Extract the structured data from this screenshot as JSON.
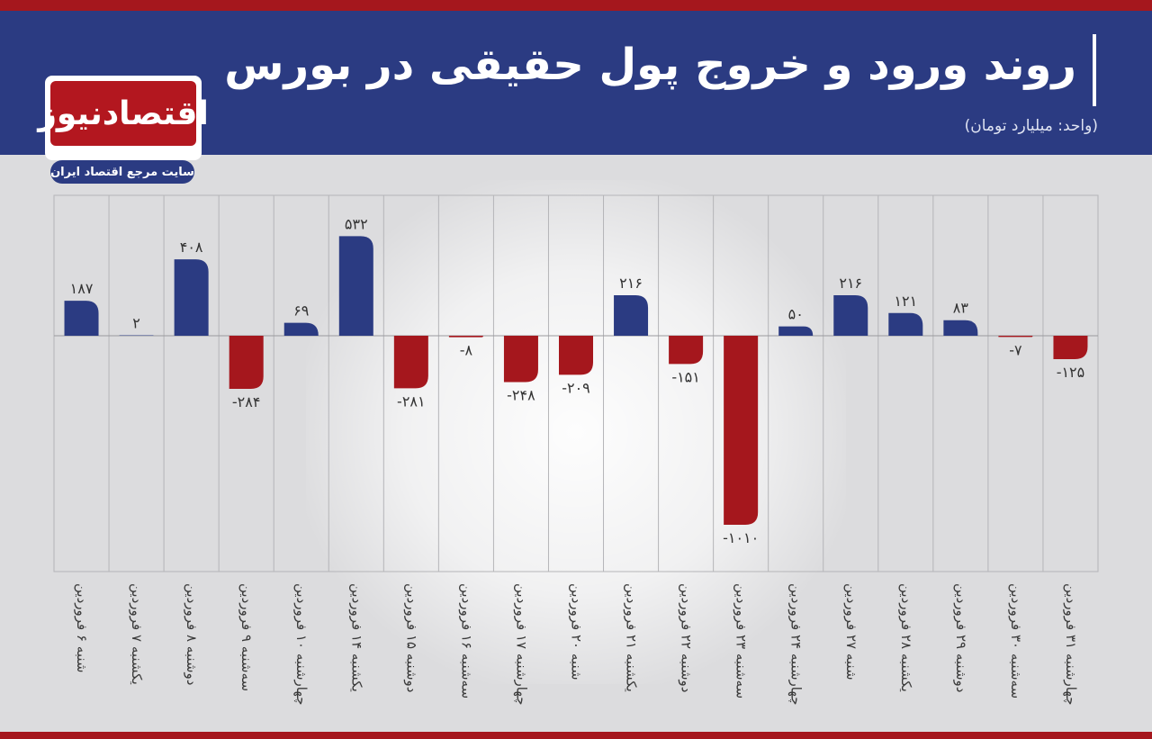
{
  "header": {
    "title": "روند ورود و خروج پول حقیقی در بورس",
    "unit": "(واحد: میلیارد تومان)"
  },
  "logo": {
    "name": "اقتصادنیوز",
    "tagline": "سایت مرجع اقتصاد ایران"
  },
  "colors": {
    "header_bg": "#2b3b82",
    "accent_red": "#a5171d",
    "positive": "#2b3b82",
    "negative": "#a5171d"
  },
  "chart_data": {
    "type": "bar",
    "title": "روند ورود و خروج پول حقیقی در بورس",
    "subtitle": "(واحد: میلیارد تومان)",
    "categories": [
      "شنبه ۶ فروردین",
      "یکشنبه ۷ فروردین",
      "دوشنبه ۸ فروردین",
      "سه‌شنبه ۹ فروردین",
      "چهارشنبه ۱۰ فروردین",
      "یکشنبه ۱۴ فروردین",
      "دوشنبه ۱۵ فروردین",
      "سه‌شنبه ۱۶ فروردین",
      "چهارشنبه ۱۷ فروردین",
      "شنبه ۲۰ فروردین",
      "یکشنبه ۲۱ فروردین",
      "دوشنبه ۲۲ فروردین",
      "سه‌شنبه ۲۳ فروردین",
      "چهارشنبه ۲۴ فروردین",
      "شنبه ۲۷ فروردین",
      "یکشنبه ۲۸ فروردین",
      "دوشنبه ۲۹ فروردین",
      "سه‌شنبه ۳۰ فروردین",
      "چهارشنبه ۳۱ فروردین"
    ],
    "values": [
      187,
      2,
      408,
      -284,
      69,
      532,
      -281,
      -8,
      -248,
      -209,
      216,
      -151,
      -1010,
      50,
      216,
      121,
      83,
      -7,
      -125
    ],
    "value_labels": [
      "۱۸۷",
      "۲",
      "۴۰۸",
      "-۲۸۴",
      "۶۹",
      "۵۳۲",
      "-۲۸۱",
      "-۸",
      "-۲۴۸",
      "-۲۰۹",
      "۲۱۶",
      "-۱۵۱",
      "-۱۰۱۰",
      "۵۰",
      "۲۱۶",
      "۱۲۱",
      "۸۳",
      "-۷",
      "-۱۲۵"
    ],
    "ylim": [
      -1260,
      750
    ],
    "grid": true,
    "legend": "none"
  }
}
